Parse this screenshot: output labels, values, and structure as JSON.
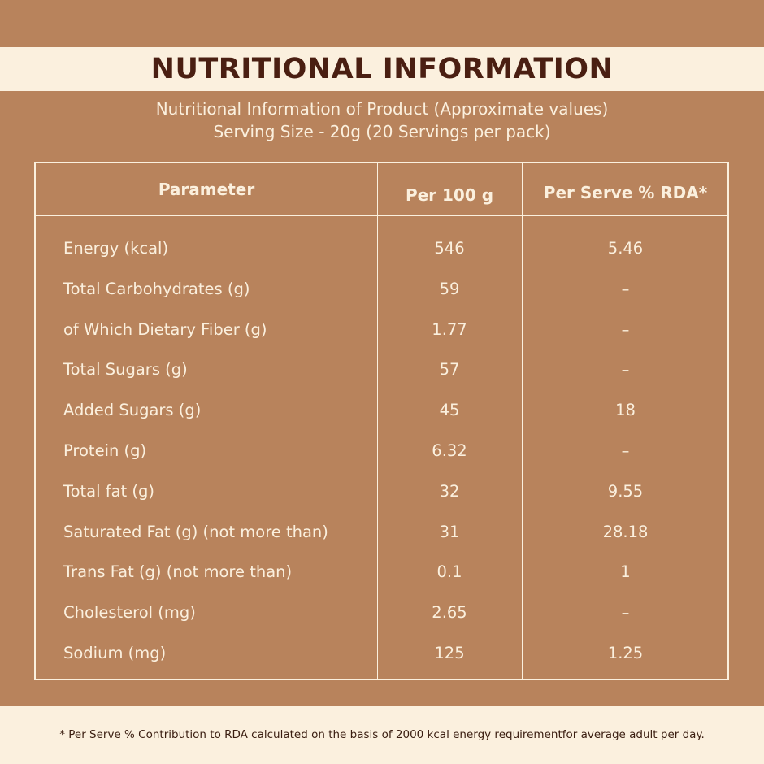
{
  "title": "NUTRITIONAL INFORMATION",
  "subtitle_line1": "Nutritional Information of Product (Approximate values)",
  "subtitle_line2": "Serving Size - 20g (20 Servings per pack)",
  "table": {
    "headers": [
      "Parameter",
      "Per 100 g",
      "Per Serve % RDA*"
    ],
    "rows": [
      {
        "parameter": "Energy (kcal)",
        "per100": "546",
        "rda": "5.46"
      },
      {
        "parameter": "Total Carbohydrates (g)",
        "per100": "59",
        "rda": "–"
      },
      {
        "parameter": "of Which Dietary Fiber (g)",
        "per100": "1.77",
        "rda": "–"
      },
      {
        "parameter": "Total Sugars (g)",
        "per100": "57",
        "rda": "–"
      },
      {
        "parameter": "Added Sugars (g)",
        "per100": "45",
        "rda": "18"
      },
      {
        "parameter": "Protein (g)",
        "per100": "6.32",
        "rda": "–"
      },
      {
        "parameter": "Total fat (g)",
        "per100": "32",
        "rda": "9.55"
      },
      {
        "parameter": "Saturated Fat (g) (not more than)",
        "per100": "31",
        "rda": "28.18"
      },
      {
        "parameter": "Trans Fat (g) (not more than)",
        "per100": "0.1",
        "rda": "1"
      },
      {
        "parameter": "Cholesterol (mg)",
        "per100": "2.65",
        "rda": "–"
      },
      {
        "parameter": "Sodium (mg)",
        "per100": "125",
        "rda": "1.25"
      }
    ]
  },
  "footnote": "* Per Serve % Contribution to RDA calculated on the basis of 2000 kcal energy requirementfor average adult per day.",
  "colors": {
    "background": "#b8835c",
    "band": "#fbf0de",
    "title_text": "#4a1f12",
    "table_text": "#fbf0de"
  }
}
